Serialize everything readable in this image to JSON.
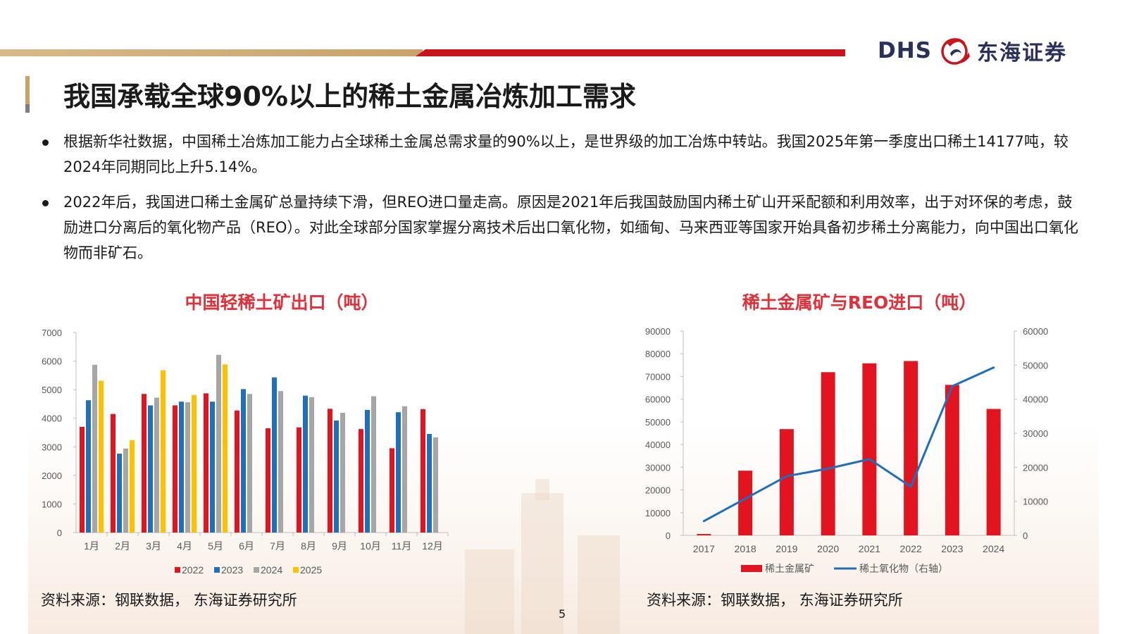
{
  "header": {
    "brand_latin": "DHS",
    "brand_cn": "东海证券"
  },
  "page_title": "我国承载全球90%以上的稀土金属冶炼加工需求",
  "bullets": [
    "根据新华社数据，中国稀土冶炼加工能力占全球稀土金属总需求量的90%以上，是世界级的加工冶炼中转站。我国2025年第一季度出口稀土14177吨，较2024年同期同比上升5.14%。",
    "2022年后，我国进口稀土金属矿总量持续下滑，但REO进口量走高。原因是2021年后我国鼓励国内稀土矿山开采配额和利用效率，出于对环保的考虑，鼓励进口分离后的氧化物产品（REO）。对此全球部分国家掌握分离技术后出口氧化物，如缅甸、马来西亚等国家开始具备初步稀土分离能力，向中国出口氧化物而非矿石。"
  ],
  "chart_data": [
    {
      "type": "bar",
      "title": "中国轻稀土矿出口（吨）",
      "categories": [
        "1月",
        "2月",
        "3月",
        "4月",
        "5月",
        "6月",
        "7月",
        "8月",
        "9月",
        "10月",
        "11月",
        "12月"
      ],
      "ylim": [
        0,
        7000
      ],
      "yticks": [
        "0",
        "1000",
        "2000",
        "3000",
        "4000",
        "5000",
        "6000",
        "7000"
      ],
      "legend_position": "bottom",
      "series": [
        {
          "name": "2022",
          "color": "#e1141f",
          "values": [
            3700,
            4150,
            4850,
            4450,
            4870,
            4270,
            3650,
            3680,
            4330,
            3620,
            2950,
            4320
          ]
        },
        {
          "name": "2023",
          "color": "#1f6fba",
          "values": [
            4630,
            2760,
            4450,
            4580,
            4580,
            5020,
            5430,
            4790,
            3920,
            4290,
            4210,
            3450
          ]
        },
        {
          "name": "2024",
          "color": "#a6a6a6",
          "values": [
            5870,
            2940,
            4720,
            4560,
            6220,
            4850,
            4950,
            4740,
            4190,
            4770,
            4420,
            3330
          ]
        },
        {
          "name": "2025",
          "color": "#ffc000",
          "values": [
            5310,
            3230,
            5680,
            4810,
            5880,
            null,
            null,
            null,
            null,
            null,
            null,
            null
          ]
        }
      ]
    },
    {
      "type": "bar+line",
      "title": "稀土金属矿与REO进口（吨）",
      "categories": [
        "2017",
        "2018",
        "2019",
        "2020",
        "2021",
        "2022",
        "2023",
        "2024"
      ],
      "y_left": {
        "ylim": [
          0,
          90000
        ],
        "ticks": [
          "0",
          "10000",
          "20000",
          "30000",
          "40000",
          "50000",
          "60000",
          "70000",
          "80000",
          "90000"
        ]
      },
      "y_right": {
        "ylim": [
          0,
          60000
        ],
        "ticks": [
          "0",
          "10000",
          "20000",
          "30000",
          "40000",
          "50000",
          "60000"
        ]
      },
      "legend_position": "bottom",
      "series": [
        {
          "name": "稀土金属矿",
          "kind": "bar",
          "axis": "left",
          "color": "#e1141f",
          "values": [
            600,
            28500,
            46800,
            71900,
            75800,
            76800,
            66300,
            55700
          ]
        },
        {
          "name": "稀土氧化物（右轴）",
          "kind": "line",
          "axis": "right",
          "color": "#1f6fba",
          "values": [
            4200,
            10800,
            17400,
            19600,
            22400,
            14300,
            43800,
            49300
          ]
        }
      ]
    }
  ],
  "sources": {
    "left": "资料来源：钢联数据， 东海证券研究所",
    "right": "资料来源：钢联数据， 东海证券研究所"
  },
  "page_number": "5",
  "colors": {
    "accent_red": "#c8151d",
    "accent_gold": "#c9a36a",
    "chart_title_red": "#e0303a",
    "brand_navy": "#2b2f5b"
  }
}
